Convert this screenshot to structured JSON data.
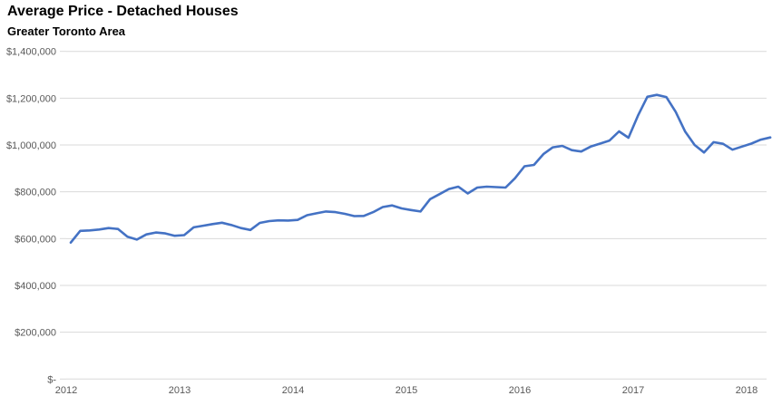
{
  "header": {
    "title": "Average Price - Detached Houses",
    "subtitle": "Greater Toronto Area"
  },
  "chart_data": {
    "type": "line",
    "title": "Average Price - Detached Houses",
    "subtitle": "Greater Toronto Area",
    "frequency": "monthly",
    "x_start": "2012-01",
    "x_end": "2018-03",
    "x_tick_labels": [
      "2012",
      "2013",
      "2014",
      "2015",
      "2016",
      "2017",
      "2018"
    ],
    "y_tick_labels": [
      "$1,400,000",
      "$1,200,000",
      "$1,000,000",
      "$800,000",
      "$600,000",
      "$400,000",
      "$200,000",
      "$-"
    ],
    "ylim": [
      0,
      1400000
    ],
    "grid": true,
    "legend": false,
    "line_color": "#4472C4",
    "gridline_color": "#D9D9D9",
    "axis_label_color": "#595959",
    "series": [
      {
        "name": "Average Price",
        "values": [
          583000,
          633000,
          635000,
          639000,
          645000,
          641000,
          608000,
          596000,
          618000,
          626000,
          622000,
          612000,
          615000,
          648000,
          655000,
          662000,
          668000,
          658000,
          645000,
          637000,
          667000,
          675000,
          678000,
          677000,
          680000,
          700000,
          708000,
          716000,
          713000,
          706000,
          696000,
          697000,
          713000,
          735000,
          742000,
          729000,
          722000,
          716000,
          768000,
          790000,
          812000,
          822000,
          793000,
          818000,
          822000,
          820000,
          818000,
          858000,
          909000,
          915000,
          961000,
          990000,
          996000,
          978000,
          972000,
          993000,
          1006000,
          1019000,
          1058000,
          1031000,
          1125000,
          1206000,
          1214000,
          1205000,
          1141000,
          1057000,
          1000000,
          968000,
          1012000,
          1005000,
          980000,
          993000,
          1006000,
          1023000,
          1032000
        ]
      }
    ]
  }
}
